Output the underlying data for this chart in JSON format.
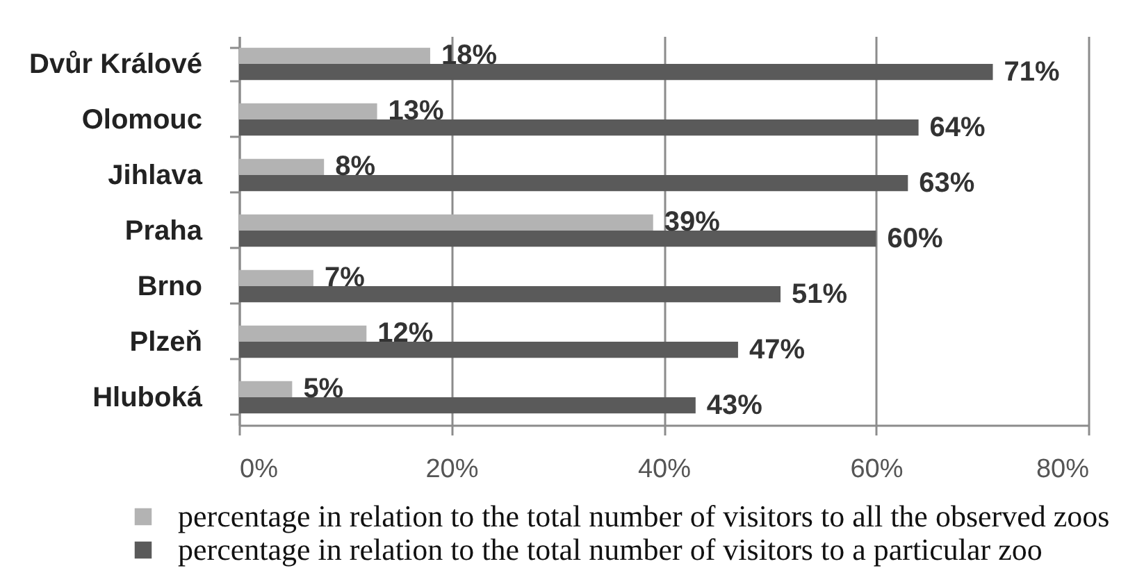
{
  "chart_data": {
    "type": "bar",
    "orientation": "horizontal",
    "categories": [
      "Dvůr Králové",
      "Olomouc",
      "Jihlava",
      "Praha",
      "Brno",
      "Plzeň",
      "Hluboká"
    ],
    "series": [
      {
        "name": "percentage in relation to the total number of visitors to all the observed zoos",
        "color": "#b3b3b3",
        "values": [
          18,
          13,
          8,
          39,
          7,
          12,
          5
        ],
        "value_labels": [
          "18%",
          "13%",
          "8%",
          "39%",
          "7%",
          "12%",
          "5%"
        ]
      },
      {
        "name": "percentage in relation to the total number of visitors to a particular zoo",
        "color": "#5a5a5a",
        "values": [
          71,
          64,
          63,
          60,
          51,
          47,
          43
        ],
        "value_labels": [
          "71%",
          "64%",
          "63%",
          "60%",
          "51%",
          "47%",
          "43%"
        ]
      }
    ],
    "xlim": [
      0,
      80
    ],
    "xticks": [
      {
        "value": 0,
        "label": "0%"
      },
      {
        "value": 20,
        "label": "20%"
      },
      {
        "value": 40,
        "label": "40%"
      },
      {
        "value": 60,
        "label": "60%"
      },
      {
        "value": 80,
        "label": "80%"
      }
    ],
    "grid": "x",
    "legend": "bottom"
  }
}
